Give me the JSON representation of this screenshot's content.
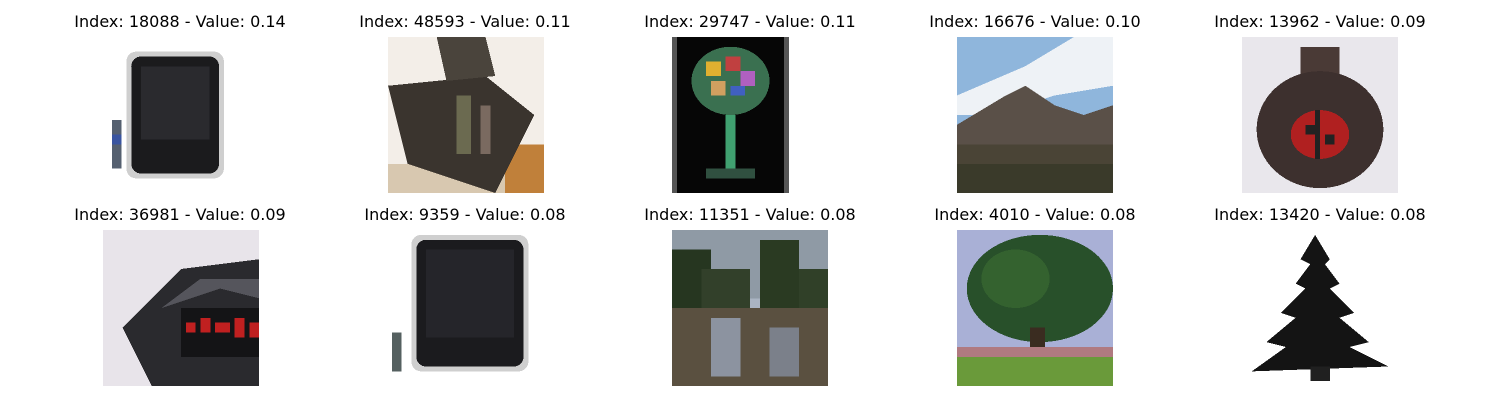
{
  "items": [
    {
      "index": 18088,
      "value": "0.14",
      "caption": "Index: 18088 - Value: 0.14",
      "depicts": "tv-with-remote"
    },
    {
      "index": 48593,
      "value": "0.11",
      "caption": "Index: 48593 - Value: 0.11",
      "depicts": "dark-box-object"
    },
    {
      "index": 29747,
      "value": "0.11",
      "caption": "Index: 29747 - Value: 0.11",
      "depicts": "colorful-lamp"
    },
    {
      "index": 16676,
      "value": "0.10",
      "caption": "Index: 16676 - Value: 0.10",
      "depicts": "mountain-landscape"
    },
    {
      "index": 13962,
      "value": "0.09",
      "caption": "Index: 13962 - Value: 0.09",
      "depicts": "ladybug-jar"
    },
    {
      "index": 36981,
      "value": "0.09",
      "caption": "Index: 36981 - Value: 0.09",
      "depicts": "digital-clock"
    },
    {
      "index": 9359,
      "value": "0.08",
      "caption": "Index: 9359 - Value: 0.08",
      "depicts": "tv-with-remote"
    },
    {
      "index": 11351,
      "value": "0.08",
      "caption": "Index: 11351 - Value: 0.08",
      "depicts": "forest-lake"
    },
    {
      "index": 4010,
      "value": "0.08",
      "caption": "Index: 4010 - Value: 0.08",
      "depicts": "tree-on-grass"
    },
    {
      "index": 13420,
      "value": "0.08",
      "caption": "Index: 13420 - Value: 0.08",
      "depicts": "pine-tree"
    }
  ]
}
